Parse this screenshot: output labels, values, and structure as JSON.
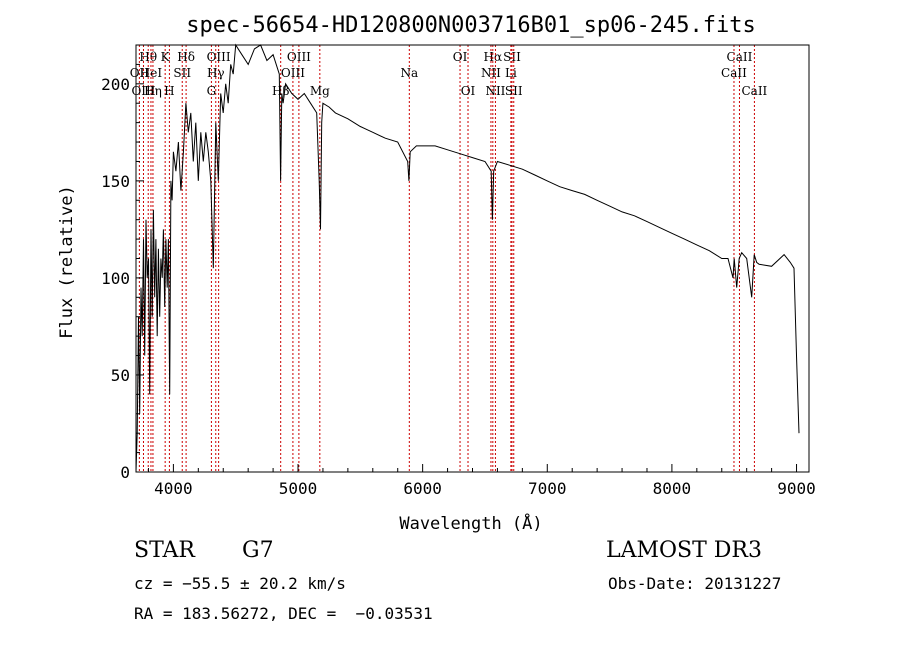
{
  "chart_data": {
    "type": "line",
    "title": "spec-56654-HD120800N003716B01_sp06-245.fits",
    "xlabel": "Wavelength (Å)",
    "ylabel": "Flux (relative)",
    "xlim": [
      3700,
      9100
    ],
    "ylim": [
      0,
      220
    ],
    "xticks": [
      4000,
      5000,
      6000,
      7000,
      8000,
      9000
    ],
    "yticks": [
      0,
      50,
      100,
      150,
      200
    ],
    "grid": false,
    "series": [
      {
        "name": "flux",
        "x": [
          3700,
          3710,
          3720,
          3730,
          3740,
          3750,
          3760,
          3770,
          3780,
          3790,
          3800,
          3810,
          3820,
          3830,
          3840,
          3850,
          3860,
          3870,
          3880,
          3890,
          3900,
          3910,
          3920,
          3930,
          3940,
          3950,
          3960,
          3970,
          3980,
          3990,
          4000,
          4020,
          4040,
          4060,
          4080,
          4100,
          4120,
          4140,
          4160,
          4180,
          4200,
          4220,
          4240,
          4260,
          4280,
          4300,
          4320,
          4340,
          4360,
          4380,
          4400,
          4420,
          4440,
          4460,
          4480,
          4500,
          4550,
          4600,
          4650,
          4700,
          4750,
          4800,
          4850,
          4860,
          4870,
          4880,
          4900,
          4950,
          5000,
          5050,
          5100,
          5150,
          5170,
          5180,
          5190,
          5200,
          5250,
          5300,
          5400,
          5500,
          5600,
          5700,
          5800,
          5880,
          5890,
          5900,
          5950,
          6000,
          6100,
          6200,
          6300,
          6400,
          6500,
          6550,
          6560,
          6570,
          6600,
          6700,
          6800,
          6900,
          7000,
          7100,
          7200,
          7300,
          7400,
          7500,
          7600,
          7700,
          7800,
          7900,
          8000,
          8100,
          8200,
          8300,
          8400,
          8450,
          8490,
          8500,
          8520,
          8540,
          8560,
          8600,
          8640,
          8660,
          8680,
          8700,
          8800,
          8900,
          8950,
          8980,
          9000,
          9020
        ],
        "y": [
          0,
          20,
          80,
          30,
          95,
          70,
          120,
          60,
          130,
          100,
          110,
          40,
          125,
          80,
          135,
          90,
          120,
          70,
          115,
          80,
          110,
          100,
          125,
          85,
          120,
          95,
          120,
          40,
          150,
          140,
          165,
          155,
          170,
          145,
          165,
          190,
          175,
          185,
          160,
          180,
          150,
          175,
          160,
          175,
          165,
          150,
          105,
          180,
          150,
          195,
          185,
          200,
          190,
          210,
          205,
          220,
          215,
          210,
          218,
          220,
          212,
          215,
          205,
          150,
          195,
          190,
          200,
          195,
          192,
          195,
          190,
          185,
          150,
          125,
          180,
          190,
          188,
          185,
          182,
          178,
          175,
          172,
          170,
          160,
          150,
          165,
          168,
          168,
          168,
          166,
          164,
          162,
          160,
          155,
          130,
          155,
          160,
          158,
          156,
          153,
          150,
          147,
          145,
          143,
          140,
          137,
          134,
          132,
          129,
          126,
          123,
          120,
          117,
          114,
          110,
          110,
          100,
          110,
          95,
          110,
          113,
          110,
          90,
          112,
          108,
          107,
          106,
          112,
          108,
          105,
          60,
          20
        ]
      }
    ],
    "lines": [
      {
        "label": "Hθ",
        "x": 3798,
        "row": 1
      },
      {
        "label": "OII",
        "x": 3727,
        "row": 2
      },
      {
        "label": "HeI",
        "x": 3820,
        "row": 2
      },
      {
        "label": "OIII",
        "x": 3760,
        "row": 3
      },
      {
        "label": "Hη",
        "x": 3836,
        "row": 3
      },
      {
        "label": "K",
        "x": 3934,
        "row": 1
      },
      {
        "label": "H",
        "x": 3968,
        "row": 3
      },
      {
        "label": "SII",
        "x": 4071,
        "row": 2
      },
      {
        "label": "Hδ",
        "x": 4102,
        "row": 1
      },
      {
        "label": "OIII",
        "x": 4363,
        "row": 1
      },
      {
        "label": "Hγ",
        "x": 4340,
        "row": 2
      },
      {
        "label": "G",
        "x": 4305,
        "row": 3
      },
      {
        "label": "OIII",
        "x": 5007,
        "row": 1
      },
      {
        "label": "OIII",
        "x": 4959,
        "row": 2
      },
      {
        "label": "Hβ",
        "x": 4861,
        "row": 3
      },
      {
        "label": "Mg",
        "x": 5175,
        "row": 3
      },
      {
        "label": "Na",
        "x": 5893,
        "row": 2
      },
      {
        "label": "OI",
        "x": 6300,
        "row": 1
      },
      {
        "label": "OI",
        "x": 6364,
        "row": 3
      },
      {
        "label": "Hα",
        "x": 6563,
        "row": 1
      },
      {
        "label": "NII",
        "x": 6548,
        "row": 2
      },
      {
        "label": "NII",
        "x": 6584,
        "row": 3
      },
      {
        "label": "SII",
        "x": 6717,
        "row": 1
      },
      {
        "label": "Li",
        "x": 6708,
        "row": 2
      },
      {
        "label": "SII",
        "x": 6731,
        "row": 3
      },
      {
        "label": "CaII",
        "x": 8542,
        "row": 1
      },
      {
        "label": "CaII",
        "x": 8498,
        "row": 2
      },
      {
        "label": "CaII",
        "x": 8662,
        "row": 3
      }
    ]
  },
  "info": {
    "class": "STAR",
    "subclass": "G7",
    "survey": "LAMOST DR3",
    "cz": "cz = −55.5 ± 20.2 km/s",
    "obs_date": "Obs-Date: 20131227",
    "radec": "RA = 183.56272, DEC =  −0.03531"
  }
}
